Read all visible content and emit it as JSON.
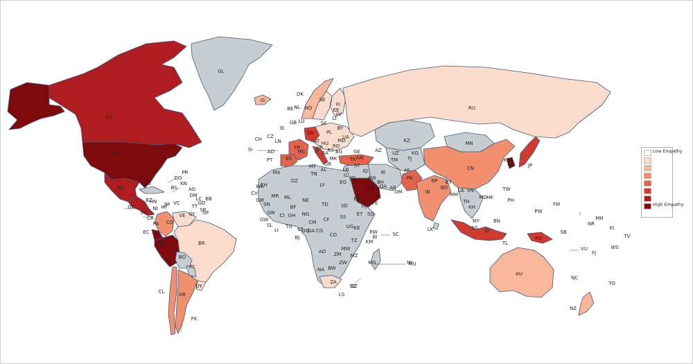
{
  "colors": {
    "no_data": "#c8cdd2",
    "levels": [
      "#f7f7f7",
      "#fbdccc",
      "#f8b69a",
      "#f18f6f",
      "#e5624b",
      "#d23a30",
      "#b01d20",
      "#7e0a0e"
    ]
  },
  "legend": {
    "low": "Low Empathy",
    "high": "High Empathy"
  },
  "countries": [
    {
      "code": "CA",
      "level": 6
    },
    {
      "code": "US",
      "level": 7
    },
    {
      "code": "GL",
      "level": 0
    },
    {
      "code": "MX",
      "level": 6
    },
    {
      "code": "CU",
      "level": 0
    },
    {
      "code": "BR",
      "level": 1
    },
    {
      "code": "CO",
      "level": 3
    },
    {
      "code": "VE",
      "level": 1
    },
    {
      "code": "EC",
      "level": 7
    },
    {
      "code": "PE",
      "level": 7
    },
    {
      "code": "BO",
      "level": 0
    },
    {
      "code": "PY",
      "level": 0
    },
    {
      "code": "CL",
      "level": 3
    },
    {
      "code": "AR",
      "level": 3
    },
    {
      "code": "UY",
      "level": 1
    },
    {
      "code": "RU",
      "level": 1
    },
    {
      "code": "CN",
      "level": 3
    },
    {
      "code": "IN",
      "level": 3
    },
    {
      "code": "PK",
      "level": 4
    },
    {
      "code": "SA",
      "level": 7
    },
    {
      "code": "AU",
      "level": 2
    },
    {
      "code": "NZ",
      "level": 2
    },
    {
      "code": "ID",
      "level": 5
    },
    {
      "code": "JP",
      "level": 5
    },
    {
      "code": "KR",
      "level": 7
    },
    {
      "code": "TR",
      "level": 4
    },
    {
      "code": "FR",
      "level": 4
    },
    {
      "code": "ES",
      "level": 4
    },
    {
      "code": "DE",
      "level": 5
    },
    {
      "code": "IS",
      "level": 2
    },
    {
      "code": "NO",
      "level": 2
    },
    {
      "code": "SE",
      "level": 1
    },
    {
      "code": "FI",
      "level": 1
    },
    {
      "code": "ZA",
      "level": 1
    },
    {
      "code": "MN",
      "level": 0
    },
    {
      "code": "KZ",
      "level": 0
    },
    {
      "code": "IR",
      "level": 0
    },
    {
      "code": "LK",
      "level": 0
    },
    {
      "code": "AF",
      "level": 0
    }
  ],
  "labels": [
    {
      "text": "CA"
    },
    {
      "text": "GL"
    },
    {
      "text": "US"
    },
    {
      "text": "MX"
    },
    {
      "text": "CU"
    },
    {
      "text": "PR"
    },
    {
      "text": "DO"
    },
    {
      "text": "KN"
    },
    {
      "text": "BS"
    },
    {
      "text": "AG"
    },
    {
      "text": "DM"
    },
    {
      "text": "LC"
    },
    {
      "text": "BB"
    },
    {
      "text": "GD"
    },
    {
      "text": "TT"
    },
    {
      "text": "SR"
    },
    {
      "text": "GF"
    },
    {
      "text": "GY"
    },
    {
      "text": "VC"
    },
    {
      "text": "HN"
    },
    {
      "text": "NI"
    },
    {
      "text": "GT"
    },
    {
      "text": "SV"
    },
    {
      "text": "CR"
    },
    {
      "text": "PA"
    },
    {
      "text": "BZ"
    },
    {
      "text": "HT"
    },
    {
      "text": "JM"
    },
    {
      "text": "VE"
    },
    {
      "text": "CO"
    },
    {
      "text": "EC"
    },
    {
      "text": "PE"
    },
    {
      "text": "BR"
    },
    {
      "text": "BO"
    },
    {
      "text": "PY"
    },
    {
      "text": "CL"
    },
    {
      "text": "AR"
    },
    {
      "text": "UY"
    },
    {
      "text": "FK"
    },
    {
      "text": "IS"
    },
    {
      "text": "DK"
    },
    {
      "text": "NO"
    },
    {
      "text": "SE"
    },
    {
      "text": "FI"
    },
    {
      "text": "NL"
    },
    {
      "text": "BE"
    },
    {
      "text": "IE"
    },
    {
      "text": "GB"
    },
    {
      "text": "LU"
    },
    {
      "text": "DE"
    },
    {
      "text": "PL"
    },
    {
      "text": "CZ"
    },
    {
      "text": "SK"
    },
    {
      "text": "CH"
    },
    {
      "text": "LN"
    },
    {
      "text": "SI"
    },
    {
      "text": "FR"
    },
    {
      "text": "AT"
    },
    {
      "text": "HU"
    },
    {
      "text": "RO"
    },
    {
      "text": "BG"
    },
    {
      "text": "MD"
    },
    {
      "text": "UA"
    },
    {
      "text": "BY"
    },
    {
      "text": "LT"
    },
    {
      "text": "LV"
    },
    {
      "text": "EE"
    },
    {
      "text": "AD"
    },
    {
      "text": "PT"
    },
    {
      "text": "ES"
    },
    {
      "text": "MC"
    },
    {
      "text": "IT"
    },
    {
      "text": "HR"
    },
    {
      "text": "BA"
    },
    {
      "text": "RS"
    },
    {
      "text": "GR"
    },
    {
      "text": "MK"
    },
    {
      "text": "AL"
    },
    {
      "text": "MT"
    },
    {
      "text": "TK"
    },
    {
      "text": "GE"
    },
    {
      "text": "AM"
    },
    {
      "text": "AZ"
    },
    {
      "text": "RU"
    },
    {
      "text": "KZ"
    },
    {
      "text": "MN"
    },
    {
      "text": "UZ"
    },
    {
      "text": "TM"
    },
    {
      "text": "KG"
    },
    {
      "text": "TJ"
    },
    {
      "text": "AF"
    },
    {
      "text": "PK"
    },
    {
      "text": "IR"
    },
    {
      "text": "IQ"
    },
    {
      "text": "SY"
    },
    {
      "text": "LB"
    },
    {
      "text": "IL"
    },
    {
      "text": "JO"
    },
    {
      "text": "KW"
    },
    {
      "text": "BH"
    },
    {
      "text": "QA"
    },
    {
      "text": "AE"
    },
    {
      "text": "OM"
    },
    {
      "text": "SA"
    },
    {
      "text": "YE"
    },
    {
      "text": "CN"
    },
    {
      "text": "NP"
    },
    {
      "text": "BT"
    },
    {
      "text": "BD"
    },
    {
      "text": "IN"
    },
    {
      "text": "LK"
    },
    {
      "text": "MM"
    },
    {
      "text": "LA"
    },
    {
      "text": "TH"
    },
    {
      "text": "VN"
    },
    {
      "text": "KH"
    },
    {
      "text": "MO"
    },
    {
      "text": "HK"
    },
    {
      "text": "TW"
    },
    {
      "text": "PH"
    },
    {
      "text": "MY"
    },
    {
      "text": "SG"
    },
    {
      "text": "BN"
    },
    {
      "text": "ID"
    },
    {
      "text": "TL"
    },
    {
      "text": "PG"
    },
    {
      "text": "KP"
    },
    {
      "text": "KR"
    },
    {
      "text": "JP"
    },
    {
      "text": "MA"
    },
    {
      "text": "DZ"
    },
    {
      "text": "TN"
    },
    {
      "text": "LY"
    },
    {
      "text": "EG"
    },
    {
      "text": "EH"
    },
    {
      "text": "MR"
    },
    {
      "text": "ML"
    },
    {
      "text": "NE"
    },
    {
      "text": "TD"
    },
    {
      "text": "SD"
    },
    {
      "text": "ER"
    },
    {
      "text": "DJ"
    },
    {
      "text": "SO"
    },
    {
      "text": "ET"
    },
    {
      "text": "SN"
    },
    {
      "text": "GM"
    },
    {
      "text": "GW"
    },
    {
      "text": "GN"
    },
    {
      "text": "SL"
    },
    {
      "text": "LI"
    },
    {
      "text": "CI"
    },
    {
      "text": "BF"
    },
    {
      "text": "GH"
    },
    {
      "text": "TG"
    },
    {
      "text": "BJ"
    },
    {
      "text": "NG"
    },
    {
      "text": "CM"
    },
    {
      "text": "CF"
    },
    {
      "text": "SS"
    },
    {
      "text": "ST"
    },
    {
      "text": "GQ"
    },
    {
      "text": "GA"
    },
    {
      "text": "CG"
    },
    {
      "text": "CD"
    },
    {
      "text": "UG"
    },
    {
      "text": "KE"
    },
    {
      "text": "RW"
    },
    {
      "text": "BI"
    },
    {
      "text": "TZ"
    },
    {
      "text": "AO"
    },
    {
      "text": "ZM"
    },
    {
      "text": "MW"
    },
    {
      "text": "MZ"
    },
    {
      "text": "ZW"
    },
    {
      "text": "NA"
    },
    {
      "text": "BW"
    },
    {
      "text": "ZA"
    },
    {
      "text": "LS"
    },
    {
      "text": "SZ"
    },
    {
      "text": "MG"
    },
    {
      "text": "MU"
    },
    {
      "text": "SC"
    },
    {
      "text": "KM"
    },
    {
      "text": "MI"
    },
    {
      "text": "WA"
    },
    {
      "text": "CV"
    },
    {
      "text": "AU"
    },
    {
      "text": "NZ"
    },
    {
      "text": "NC"
    },
    {
      "text": "VU"
    },
    {
      "text": "FJ"
    },
    {
      "text": "SB"
    },
    {
      "text": "PW"
    },
    {
      "text": "FM"
    },
    {
      "text": "MH"
    },
    {
      "text": "NR"
    },
    {
      "text": "KI"
    },
    {
      "text": "TV"
    },
    {
      "text": "WS"
    },
    {
      "text": "TO"
    },
    {
      "text": "SZ"
    }
  ]
}
